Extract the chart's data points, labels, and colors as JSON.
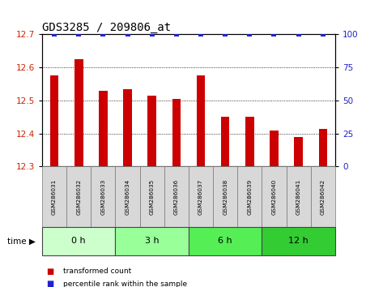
{
  "title": "GDS3285 / 209806_at",
  "samples": [
    "GSM286031",
    "GSM286032",
    "GSM286033",
    "GSM286034",
    "GSM286035",
    "GSM286036",
    "GSM286037",
    "GSM286038",
    "GSM286039",
    "GSM286040",
    "GSM286041",
    "GSM286042"
  ],
  "red_values": [
    12.575,
    12.625,
    12.53,
    12.535,
    12.515,
    12.505,
    12.575,
    12.45,
    12.45,
    12.41,
    12.39,
    12.415
  ],
  "blue_values": [
    100,
    100,
    100,
    100,
    100,
    100,
    100,
    100,
    100,
    100,
    100,
    100
  ],
  "ylim_left": [
    12.3,
    12.7
  ],
  "ylim_right": [
    0,
    100
  ],
  "yticks_left": [
    12.3,
    12.4,
    12.5,
    12.6,
    12.7
  ],
  "yticks_right": [
    0,
    25,
    50,
    75,
    100
  ],
  "bar_color": "#cc0000",
  "dot_color": "#2222cc",
  "bar_bottom": 12.3,
  "groups": [
    {
      "label": "0 h",
      "start": 0,
      "end": 3,
      "color": "#ccffcc"
    },
    {
      "label": "3 h",
      "start": 3,
      "end": 6,
      "color": "#99ff99"
    },
    {
      "label": "6 h",
      "start": 6,
      "end": 9,
      "color": "#55ee55"
    },
    {
      "label": "12 h",
      "start": 9,
      "end": 12,
      "color": "#33cc33"
    }
  ],
  "time_label": "time ▶",
  "legend_items": [
    {
      "label": "transformed count",
      "color": "#cc0000"
    },
    {
      "label": "percentile rank within the sample",
      "color": "#2222cc"
    }
  ],
  "bg_color": "#ffffff",
  "tick_label_color_left": "#cc2200",
  "tick_label_color_right": "#2222cc",
  "grid_color": "#000000",
  "sample_bg_color": "#d8d8d8",
  "title_font": "monospace"
}
